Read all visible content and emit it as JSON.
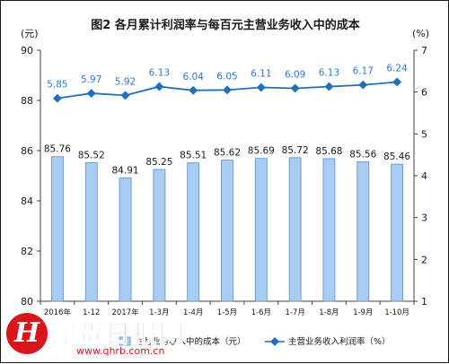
{
  "chart_data": {
    "type": "bar+line",
    "title": "图2  各月累计利润率与每百元主营业务收入中的成本",
    "left_unit": "(元)",
    "right_unit": "(%)",
    "categories": [
      "2016年",
      "1-12",
      "2017年",
      "1-3月",
      "1-4月",
      "1-5月",
      "1-6月",
      "1-7月",
      "1-8月",
      "1-9月",
      "1-10月"
    ],
    "y_left": {
      "range": [
        80,
        90
      ],
      "ticks": [
        "80",
        "82",
        "84",
        "86",
        "88",
        "90"
      ]
    },
    "y_right": {
      "range": [
        1,
        7
      ],
      "ticks": [
        "1",
        "2",
        "3",
        "4",
        "5",
        "6",
        "7"
      ]
    },
    "bar_values": [
      85.76,
      85.52,
      84.91,
      85.25,
      85.51,
      85.62,
      85.69,
      85.72,
      85.68,
      85.56,
      85.46
    ],
    "bar_labels": [
      "85.76",
      "85.52",
      "84.91",
      "85.25",
      "85.51",
      "85.62",
      "85.69",
      "85.72",
      "85.68",
      "85.56",
      "85.46"
    ],
    "line_values": [
      5.85,
      5.97,
      5.92,
      6.13,
      6.04,
      6.05,
      6.11,
      6.09,
      6.13,
      6.17,
      6.24
    ],
    "line_labels": [
      "5.85",
      "5.97",
      "5.92",
      "6.13",
      "6.04",
      "6.05",
      "6.11",
      "6.09",
      "6.13",
      "6.17",
      "6.24"
    ],
    "legend": {
      "bar": "主营业务收入中的成本（元）",
      "line": "主营业务收入利润率（%）"
    },
    "colors": {
      "bar_fill": "#a9cdf2",
      "bar_stroke": "#5b8fc9",
      "line": "#1f6fbf",
      "line_label": "#2e7ad1",
      "axis": "#404040",
      "text": "#1a1a1a"
    },
    "grid": false
  },
  "watermark": {
    "name": "期货日报网",
    "url": "www.qhrb.com.cn",
    "letter": "H",
    "color": "#d9141b"
  }
}
